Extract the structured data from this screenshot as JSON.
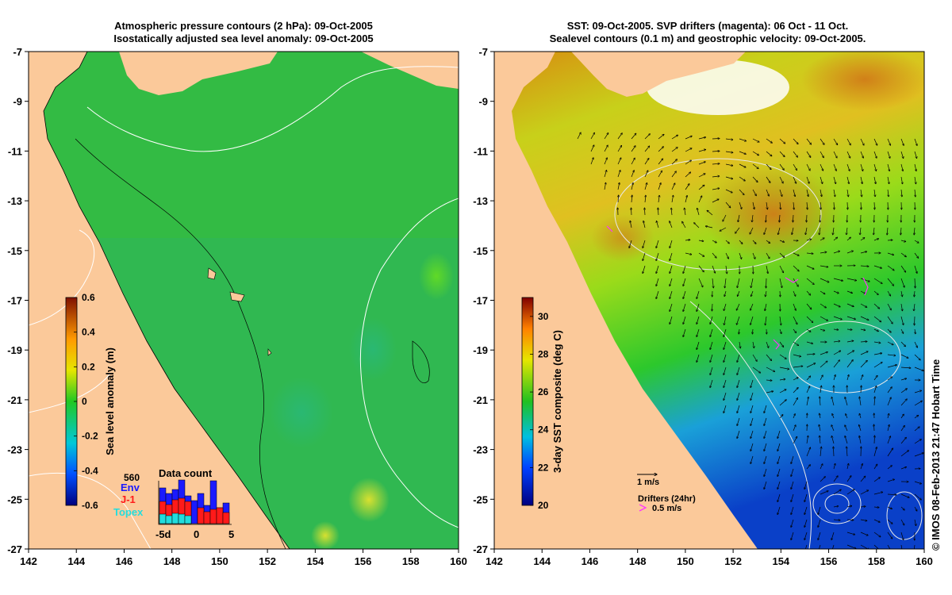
{
  "left_panel": {
    "title_line1": "Atmospheric pressure contours (2 hPa): 09-Oct-2005",
    "title_line2": "Isostatically adjusted sea level anomaly: 09-Oct-2005",
    "x_ticks": [
      "142",
      "144",
      "146",
      "148",
      "150",
      "152",
      "154",
      "156",
      "158",
      "160"
    ],
    "y_ticks": [
      "-7",
      "-9",
      "-11",
      "-13",
      "-15",
      "-17",
      "-19",
      "-21",
      "-23",
      "-25",
      "-27"
    ],
    "colorbar": {
      "label": "Sea level anomaly (m)",
      "ticks": [
        "0.6",
        "0.4",
        "0.2",
        "0",
        "-0.2",
        "-0.4",
        "-0.6"
      ],
      "range": [
        -0.6,
        0.6
      ]
    },
    "data_count": {
      "title": "Data count",
      "max_label": "560",
      "legend": [
        {
          "name": "Env",
          "color": "#1a1aff"
        },
        {
          "name": "J-1",
          "color": "#ff1a1a"
        },
        {
          "name": "Topex",
          "color": "#22dddd"
        }
      ],
      "axis_labels": [
        "-5d",
        "0",
        "5"
      ]
    }
  },
  "right_panel": {
    "title_line1": "SST: 09-Oct-2005. SVP drifters (magenta): 06 Oct - 11 Oct.",
    "title_line2": "Sealevel contours (0.1 m) and geostrophic velocity: 09-Oct-2005.",
    "x_ticks": [
      "142",
      "144",
      "146",
      "148",
      "150",
      "152",
      "154",
      "156",
      "158",
      "160"
    ],
    "y_ticks": [
      "-7",
      "-9",
      "-11",
      "-13",
      "-15",
      "-17",
      "-19",
      "-21",
      "-23",
      "-25",
      "-27"
    ],
    "colorbar": {
      "label": "3-day SST composite (deg C)",
      "ticks": [
        "30",
        "28",
        "26",
        "24",
        "22",
        "20"
      ],
      "range": [
        20,
        31
      ]
    },
    "velocity_scale_label": "1 m/s",
    "drifters_label": "Drifters (24hr)",
    "drifters_scale_label": "0.5 m/s"
  },
  "credit": "© IMOS 08-Feb-2013 21:47 Hobart Time",
  "colors": {
    "land": "#fbc99a",
    "sla_base": "#33bb44",
    "drifter": "#ff33ff"
  }
}
